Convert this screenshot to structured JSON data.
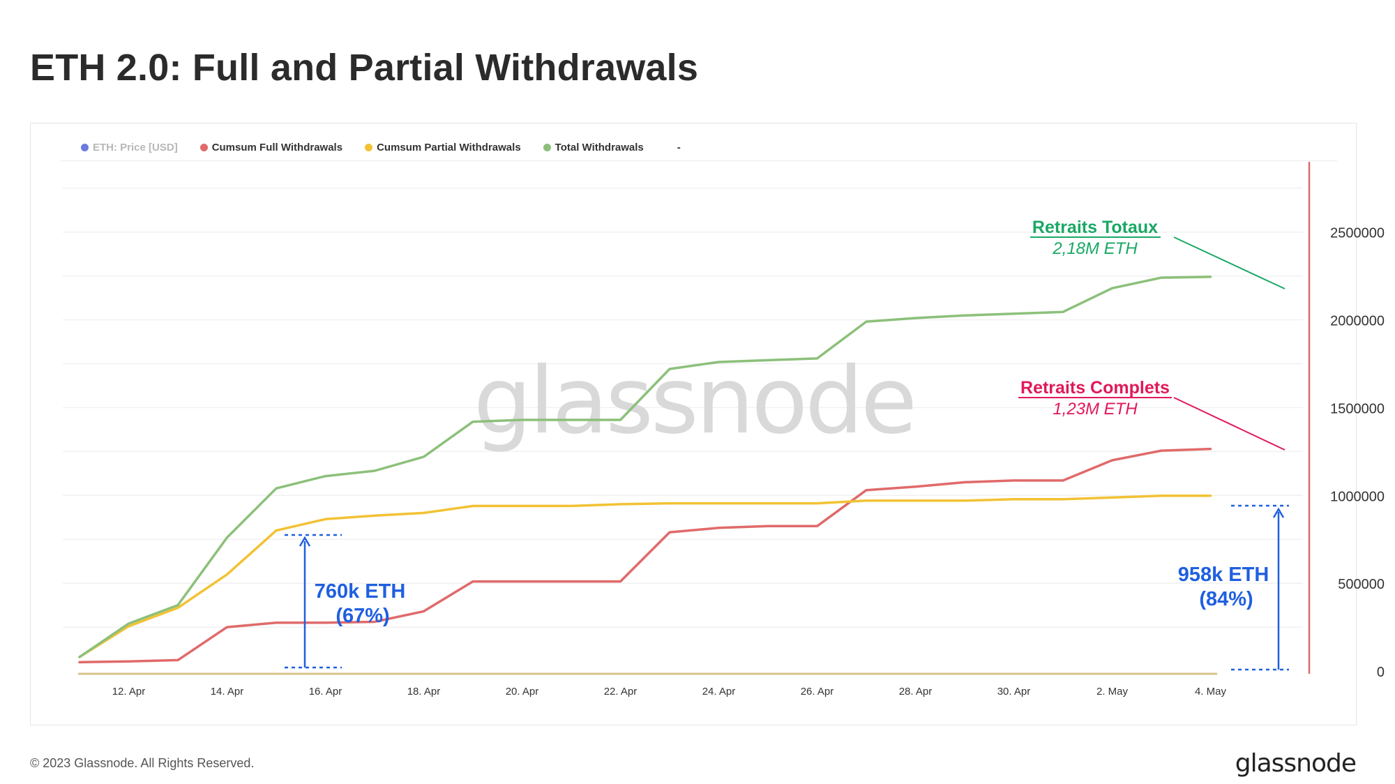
{
  "header": {
    "title": "ETH 2.0: Full and Partial Withdrawals"
  },
  "legend": [
    {
      "label": "ETH: Price [USD]",
      "color": "#6c7be0",
      "muted": true
    },
    {
      "label": "Cumsum Full Withdrawals",
      "color": "#e06a6a",
      "muted": false
    },
    {
      "label": "Cumsum Partial Withdrawals",
      "color": "#f2c234",
      "muted": false
    },
    {
      "label": "Total Withdrawals",
      "color": "#8cc07a",
      "muted": false
    }
  ],
  "legend_extra": "-",
  "watermark": "glassnode",
  "annotations": {
    "total_title": "Retraits Totaux",
    "total_value": "2,18M ETH",
    "full_title": "Retraits Complets",
    "full_value": "1,23M ETH",
    "partial_early_line1": "760k ETH",
    "partial_early_line2": "(67%)",
    "partial_late_line1": "958k ETH",
    "partial_late_line2": "(84%)",
    "total_color": "#1aa865",
    "full_color": "#e0195a",
    "marker_color": "#1f5fe0"
  },
  "footer": {
    "copyright": "© 2023 Glassnode. All Rights Reserved.",
    "logo": "glassnode"
  },
  "chart_data": {
    "type": "line",
    "title": "ETH 2.0: Full and Partial Withdrawals",
    "x": [
      "2023-04-11",
      "2023-04-12",
      "2023-04-13",
      "2023-04-14",
      "2023-04-15",
      "2023-04-16",
      "2023-04-17",
      "2023-04-18",
      "2023-04-19",
      "2023-04-20",
      "2023-04-21",
      "2023-04-22",
      "2023-04-23",
      "2023-04-24",
      "2023-04-25",
      "2023-04-26",
      "2023-04-27",
      "2023-04-28",
      "2023-04-29",
      "2023-04-30",
      "2023-05-01",
      "2023-05-02",
      "2023-05-03",
      "2023-05-04",
      "2023-05-05"
    ],
    "x_tick_labels": [
      "12. Apr",
      "14. Apr",
      "16. Apr",
      "18. Apr",
      "20. Apr",
      "22. Apr",
      "24. Apr",
      "26. Apr",
      "28. Apr",
      "30. Apr",
      "2. May",
      "4. May"
    ],
    "x_tick_dates": [
      "2023-04-12",
      "2023-04-14",
      "2023-04-16",
      "2023-04-18",
      "2023-04-20",
      "2023-04-22",
      "2023-04-24",
      "2023-04-26",
      "2023-04-28",
      "2023-04-30",
      "2023-05-02",
      "2023-05-04"
    ],
    "y_ticks": [
      0,
      500000,
      1000000,
      1500000,
      2000000,
      2500000
    ],
    "y_tick_labels": [
      "0",
      "500000",
      "1000000",
      "1500000",
      "2000000",
      "2500000"
    ],
    "ylim": [
      0,
      2900000
    ],
    "yaxis_position": "right",
    "grid": true,
    "legend_position": "top-left",
    "series": [
      {
        "name": "Cumsum Full Withdrawals",
        "color": "#e06a6a",
        "values": [
          50000,
          55000,
          62000,
          250000,
          275000,
          275000,
          280000,
          340000,
          510000,
          510000,
          510000,
          510000,
          790000,
          815000,
          825000,
          825000,
          1030000,
          1050000,
          1075000,
          1085000,
          1085000,
          1200000,
          1255000,
          1265000,
          null
        ]
      },
      {
        "name": "Cumsum Partial Withdrawals",
        "color": "#f2c234",
        "values": [
          80000,
          255000,
          360000,
          550000,
          800000,
          865000,
          885000,
          900000,
          940000,
          940000,
          940000,
          950000,
          955000,
          955000,
          955000,
          955000,
          970000,
          970000,
          970000,
          978000,
          978000,
          988000,
          998000,
          998000,
          null
        ]
      },
      {
        "name": "Total Withdrawals",
        "color": "#8cc07a",
        "values": [
          80000,
          270000,
          375000,
          760000,
          1040000,
          1110000,
          1140000,
          1220000,
          1420000,
          1430000,
          1430000,
          1430000,
          1720000,
          1760000,
          1770000,
          1780000,
          1990000,
          2010000,
          2025000,
          2035000,
          2045000,
          2180000,
          2240000,
          2245000,
          null
        ]
      }
    ],
    "price_series": {
      "name": "ETH: Price [USD]",
      "color": "#d7c487"
    }
  }
}
